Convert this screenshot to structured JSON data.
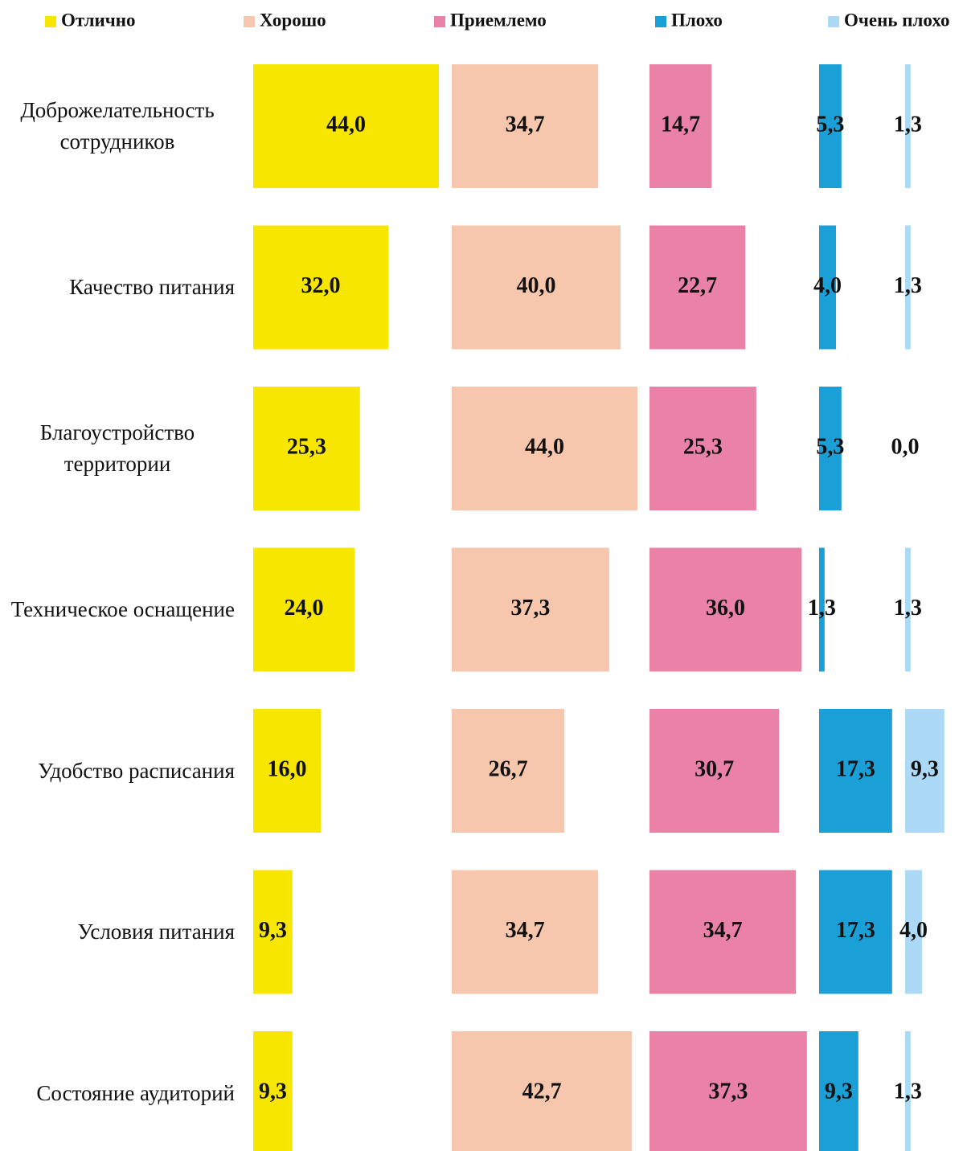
{
  "chart_data": {
    "type": "bar",
    "orientation": "horizontal",
    "categories": [
      "Доброжелательность сотрудников",
      "Качество питания",
      "Благоустройство территории",
      "Техническое оснащение",
      "Удобство расписания",
      "Условия питания",
      "Состояние аудиторий"
    ],
    "series": [
      {
        "name": "Отлично",
        "color": "#f7e600",
        "values": [
          44.0,
          32.0,
          25.3,
          24.0,
          16.0,
          9.3,
          9.3
        ],
        "value_labels": [
          "44,0",
          "32,0",
          "25,3",
          "24,0",
          "16,0",
          "9,3",
          "9,3"
        ]
      },
      {
        "name": "Хорошо",
        "color": "#f6c7ad",
        "values": [
          34.7,
          40.0,
          44.0,
          37.3,
          26.7,
          34.7,
          42.7
        ],
        "value_labels": [
          "34,7",
          "40,0",
          "44,0",
          "37,3",
          "26,7",
          "34,7",
          "42,7"
        ]
      },
      {
        "name": "Приемлемо",
        "color": "#e982a6",
        "values": [
          14.7,
          22.7,
          25.3,
          36.0,
          30.7,
          34.7,
          37.3
        ],
        "value_labels": [
          "14,7",
          "22,7",
          "25,3",
          "36,0",
          "30,7",
          "34,7",
          "37,3"
        ]
      },
      {
        "name": "Плохо",
        "color": "#1a9fd6",
        "values": [
          5.3,
          4.0,
          5.3,
          1.3,
          17.3,
          17.3,
          9.3
        ],
        "value_labels": [
          "5,3",
          "4,0",
          "5,3",
          "1,3",
          "17,3",
          "17,3",
          "9,3"
        ]
      },
      {
        "name": "Очень плохо",
        "color": "#acd9f5",
        "values": [
          1.3,
          1.3,
          0.0,
          1.3,
          9.3,
          4.0,
          1.3
        ],
        "value_labels": [
          "1,3",
          "1,3",
          "0,0",
          "1,3",
          "9,3",
          "4,0",
          "1,3"
        ]
      }
    ]
  }
}
